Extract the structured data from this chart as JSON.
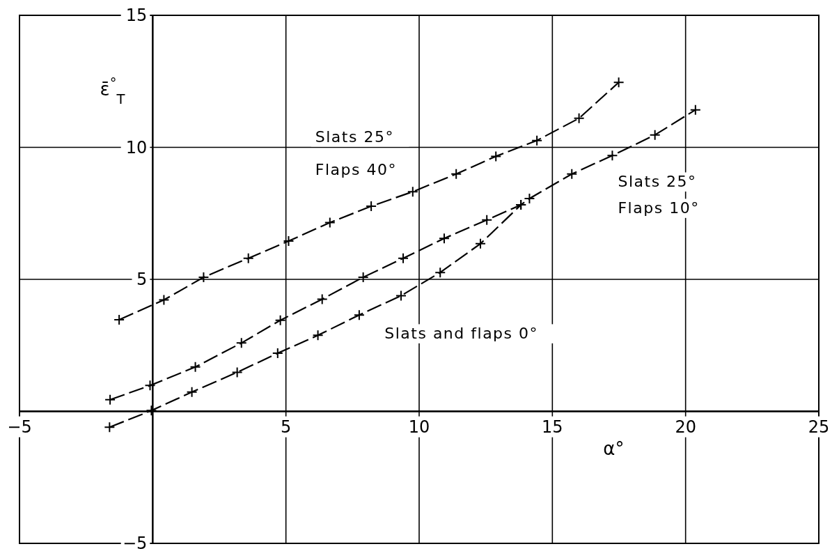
{
  "chart_data": {
    "type": "line",
    "xlabel": "α°",
    "ylabel": "ε̄$^{°}$$_{T}$",
    "xlim": [
      -5,
      25
    ],
    "ylim": [
      -5,
      15
    ],
    "xticks": [
      -5,
      {
        "value": 0,
        "label": null
      },
      5,
      10,
      15,
      20,
      25
    ],
    "yticks": [
      -5,
      {
        "value": 0,
        "label": null
      },
      5,
      10,
      15
    ],
    "grid": true,
    "marker": "cross",
    "line_style": "dashed",
    "series": [
      {
        "color": "#000000",
        "x": [
          -1.26,
          0.42,
          1.91,
          3.59,
          5.1,
          6.65,
          8.2,
          9.76,
          11.39,
          12.88,
          14.42,
          16.0,
          17.49
        ],
        "values": [
          3.47,
          4.22,
          5.08,
          5.8,
          6.45,
          7.15,
          7.77,
          8.32,
          8.99,
          9.66,
          10.26,
          11.1,
          12.46
        ]
      },
      {
        "color": "#000000",
        "x": [
          -1.6,
          -0.1,
          1.6,
          3.33,
          4.79,
          6.36,
          7.9,
          9.4,
          10.94,
          12.54,
          13.82,
          14.14,
          15.73,
          17.25,
          18.85,
          20.37
        ],
        "values": [
          0.44,
          0.98,
          1.68,
          2.59,
          3.45,
          4.25,
          5.08,
          5.8,
          6.55,
          7.25,
          7.82,
          8.06,
          8.99,
          9.69,
          10.47,
          11.42
        ]
      },
      {
        "color": "#000000",
        "x": [
          -1.62,
          -0.05,
          1.47,
          3.17,
          4.69,
          6.2,
          7.75,
          9.32,
          10.79,
          12.3,
          13.82
        ],
        "values": [
          -0.6,
          0.03,
          0.73,
          1.48,
          2.2,
          2.88,
          3.65,
          4.38,
          5.26,
          6.35,
          7.82
        ]
      }
    ],
    "annotations": [
      "Slats 25°",
      "Flaps 40°",
      "Slats 25°",
      "Flaps 10°",
      "Slats and flaps 0°"
    ]
  }
}
